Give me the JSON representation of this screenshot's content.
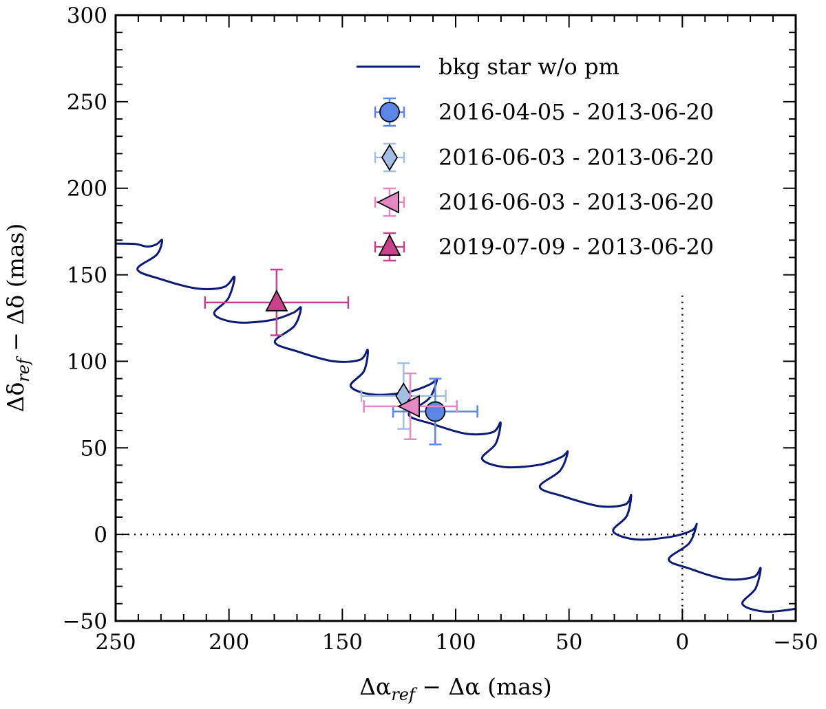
{
  "chart_data": {
    "type": "scatter",
    "title": "",
    "xlabel": {
      "main": "Δα",
      "sub": "ref",
      "rest": " − Δα (mas)"
    },
    "ylabel": {
      "main": "Δδ",
      "sub": "ref",
      "rest": " − Δδ (mas)"
    },
    "xlim": [
      250,
      -50
    ],
    "ylim": [
      -50,
      300
    ],
    "xticks": [
      250,
      200,
      150,
      100,
      50,
      0,
      -50
    ],
    "yticks": [
      300,
      250,
      200,
      150,
      100,
      50,
      0,
      -50
    ],
    "xtick_labels": [
      "250",
      "200",
      "150",
      "100",
      "50",
      "0",
      "−50"
    ],
    "ytick_labels": [
      "300",
      "250",
      "200",
      "150",
      "100",
      "50",
      "0",
      "−50"
    ],
    "grid": false,
    "legend_position": "top-right",
    "reference_lines": {
      "x": 0,
      "y": 0,
      "style": "dotted"
    },
    "track": {
      "name": "bkg star w/o pm",
      "color": "#0b1a75",
      "description": "background star track without proper motion",
      "points": [
        [
          250,
          168.0
        ],
        [
          241.5,
          167.8
        ],
        [
          236.1,
          166.3
        ],
        [
          232.1,
          167.5
        ],
        [
          229.5,
          170.0
        ],
        [
          231.8,
          161.7
        ],
        [
          240.4,
          153.2
        ],
        [
          230.4,
          147.6
        ],
        [
          214.2,
          142.1
        ],
        [
          202.3,
          142.9
        ],
        [
          197.6,
          148.8
        ],
        [
          200.3,
          136.4
        ],
        [
          206.5,
          127.4
        ],
        [
          196.7,
          122.5
        ],
        [
          181.4,
          123.8
        ],
        [
          171.6,
          128.1
        ],
        [
          168.3,
          131.0
        ],
        [
          171.1,
          120.5
        ],
        [
          179.8,
          111.2
        ],
        [
          169.8,
          105.7
        ],
        [
          153.9,
          100.0
        ],
        [
          142.2,
          100.9
        ],
        [
          138.8,
          106.6
        ],
        [
          140.4,
          94.5
        ],
        [
          146.3,
          85.6
        ],
        [
          136.4,
          80.8
        ],
        [
          121.0,
          82.3
        ],
        [
          111.3,
          86.7
        ],
        [
          108.3,
          89.6
        ],
        [
          111.6,
          78.7
        ],
        [
          120.7,
          69.3
        ],
        [
          110.3,
          63.8
        ],
        [
          95.1,
          58.1
        ],
        [
          83.6,
          59.1
        ],
        [
          80.2,
          64.6
        ],
        [
          82.3,
          52.5
        ],
        [
          88.3,
          43.6
        ],
        [
          78.3,
          38.9
        ],
        [
          62.8,
          40.3
        ],
        [
          53.2,
          44.8
        ],
        [
          50.6,
          47.7
        ],
        [
          53.9,
          36.9
        ],
        [
          62.9,
          27.5
        ],
        [
          52.5,
          22.0
        ],
        [
          36.6,
          16.3
        ],
        [
          25.2,
          17.3
        ],
        [
          22.6,
          22.8
        ],
        [
          24.5,
          10.7
        ],
        [
          30.5,
          1.8
        ],
        [
          20.4,
          -2.9
        ],
        [
          5.3,
          -1.4
        ],
        [
          -4.2,
          2.3
        ],
        [
          -6.3,
          5.9
        ],
        [
          -3.0,
          -5.1
        ],
        [
          6.0,
          -14.4
        ],
        [
          -3.3,
          -19.8
        ],
        [
          -19.0,
          -25.8
        ],
        [
          -31.3,
          -24.6
        ],
        [
          -34.5,
          -19.4
        ],
        [
          -32.3,
          -31.2
        ],
        [
          -26.5,
          -40.2
        ],
        [
          -36.4,
          -44.6
        ],
        [
          -50,
          -43.0
        ]
      ]
    },
    "series": [
      {
        "name": "2016-04-05 - 2013-06-20",
        "marker": "circle",
        "color": "#5b86e6",
        "errcolor": "#5b86e6",
        "x": 109,
        "y": 71,
        "xerr": 18.6,
        "yerr": 19.0
      },
      {
        "name": "2016-06-03 - 2013-06-20",
        "marker": "diamond",
        "color": "#a3bde3",
        "errcolor": "#a3bde3",
        "x": 123,
        "y": 80,
        "xerr": 18.6,
        "yerr": 19.0
      },
      {
        "name": "2016-06-03 - 2013-06-20",
        "marker": "triangle-left",
        "color": "#e587c2",
        "errcolor": "#e587c2",
        "x": 120,
        "y": 74,
        "xerr": 20.5,
        "yerr": 19.0
      },
      {
        "name": "2019-07-09 - 2013-06-20",
        "marker": "triangle-up",
        "color": "#c9418b",
        "errcolor": "#c9418b",
        "x": 179,
        "y": 134,
        "xerr": 31.6,
        "yerr": 19.0
      }
    ]
  }
}
